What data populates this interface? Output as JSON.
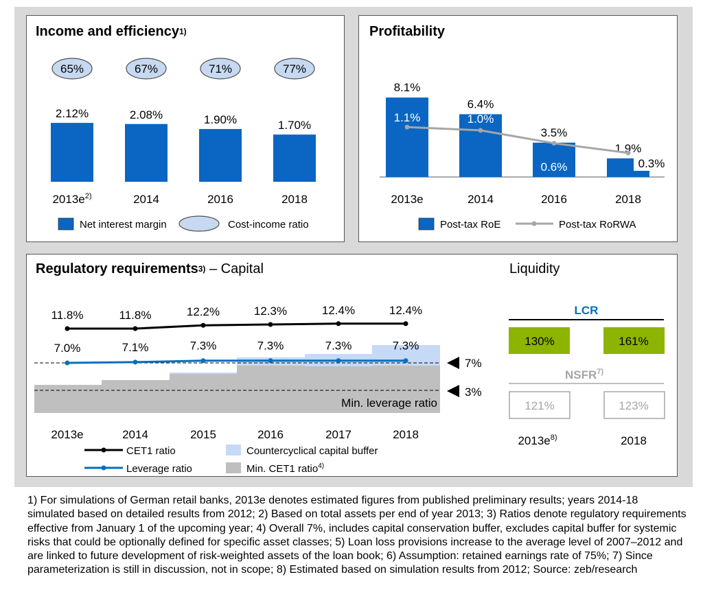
{
  "income": {
    "title": "Income and efficiency",
    "title_sup": "1)",
    "legend_nim": "Net interest margin",
    "legend_cir": "Cost-income ratio"
  },
  "profit": {
    "title": "Profitability",
    "legend_roe": "Post-tax RoE",
    "legend_rorwa": "Post-tax RoRWA"
  },
  "reg": {
    "title_bold": "Regulatory requirements",
    "title_sup": "3)",
    "title_rest": " – Capital",
    "min_leverage_label": "Min. leverage ratio",
    "marker_7": "7%",
    "marker_3": "3%",
    "legend_cet1": "CET1 ratio",
    "legend_ccb": "Countercyclical capital buffer",
    "legend_lev": "Leverage ratio",
    "legend_mincet1": "Min. CET1 ratio",
    "legend_mincet1_sup": "4)"
  },
  "liquidity": {
    "title": "Liquidity",
    "lcr_label": "LCR",
    "lcr_values": [
      "130%",
      "161%"
    ],
    "nsfr_label": "NSFR",
    "nsfr_sup": "7)",
    "nsfr_values": [
      "121%",
      "123%"
    ],
    "years": [
      "2013e",
      "2018"
    ],
    "year_sup": "8)"
  },
  "colors": {
    "bar_blue": "#0a66c2",
    "ellipse_fill": "#c6d9f1",
    "line_gray": "#a6a6a6",
    "leverage_blue": "#0070c0",
    "ccb_light": "#c6d9f6",
    "min_cet1_gray": "#bfbfbf",
    "lcr_green": "#8db400",
    "frame_gray": "#d9d9d9"
  },
  "footnotes": "1) For simulations of German retail banks, 2013e denotes estimated figures from published preliminary results; years 2014-18 simulated based on detailed results from 2012; 2) Based on total assets per end of year 2013; 3) Ratios denote regulatory requirements effective from January 1 of the upcoming year; 4) Overall 7%, includes capital conservation buffer, excludes capital buffer for systemic risks that could be optionally defined for specific asset classes; 5) Loan loss provisions increase to the average level of 2007–2012 and are linked to future development of risk-weighted assets of the loan book; 6) Assumption: retained earnings rate of 75%; 7) Since parameterization is still in discussion, not in scope; 8) Estimated based on simulation results from 2012; Source: zeb/research",
  "chart_data": [
    {
      "type": "bar",
      "title": "Income and efficiency",
      "categories": [
        "2013e",
        "2014",
        "2016",
        "2018"
      ],
      "category_sup": [
        "2)",
        "",
        "",
        ""
      ],
      "series": [
        {
          "name": "Net interest margin",
          "values": [
            2.12,
            2.08,
            1.9,
            1.7
          ],
          "labels": [
            "2.12%",
            "2.08%",
            "1.90%",
            "1.70%"
          ]
        },
        {
          "name": "Cost-income ratio",
          "values": [
            65,
            67,
            71,
            77
          ],
          "labels": [
            "65%",
            "67%",
            "71%",
            "77%"
          ]
        }
      ]
    },
    {
      "type": "bar",
      "title": "Profitability",
      "categories": [
        "2013e",
        "2014",
        "2016",
        "2018"
      ],
      "series": [
        {
          "name": "Post-tax RoE",
          "values": [
            8.1,
            6.4,
            3.5,
            1.9
          ],
          "labels": [
            "8.1%",
            "6.4%",
            "3.5%",
            "1.9%"
          ]
        },
        {
          "name": "Post-tax RoRWA",
          "type": "line",
          "values": [
            1.1,
            1.0,
            0.6,
            0.3
          ],
          "labels": [
            "1.1%",
            "1.0%",
            "0.6%",
            "0.3%"
          ]
        }
      ]
    },
    {
      "type": "line",
      "title": "Regulatory requirements – Capital",
      "categories": [
        "2013e",
        "2014",
        "2015",
        "2016",
        "2017",
        "2018"
      ],
      "series": [
        {
          "name": "CET1 ratio",
          "values": [
            11.8,
            11.8,
            12.2,
            12.3,
            12.4,
            12.4
          ],
          "labels": [
            "11.8%",
            "11.8%",
            "12.2%",
            "12.3%",
            "12.4%",
            "12.4%"
          ]
        },
        {
          "name": "Leverage ratio",
          "values": [
            7.0,
            7.1,
            7.3,
            7.3,
            7.3,
            7.3
          ],
          "labels": [
            "7.0%",
            "7.1%",
            "7.3%",
            "7.3%",
            "7.3%",
            "7.3%"
          ]
        },
        {
          "name": "Min. CET1 ratio",
          "type": "area"
        },
        {
          "name": "Countercyclical capital buffer",
          "type": "area"
        }
      ],
      "reference_lines": [
        "7%",
        "3%"
      ]
    }
  ]
}
